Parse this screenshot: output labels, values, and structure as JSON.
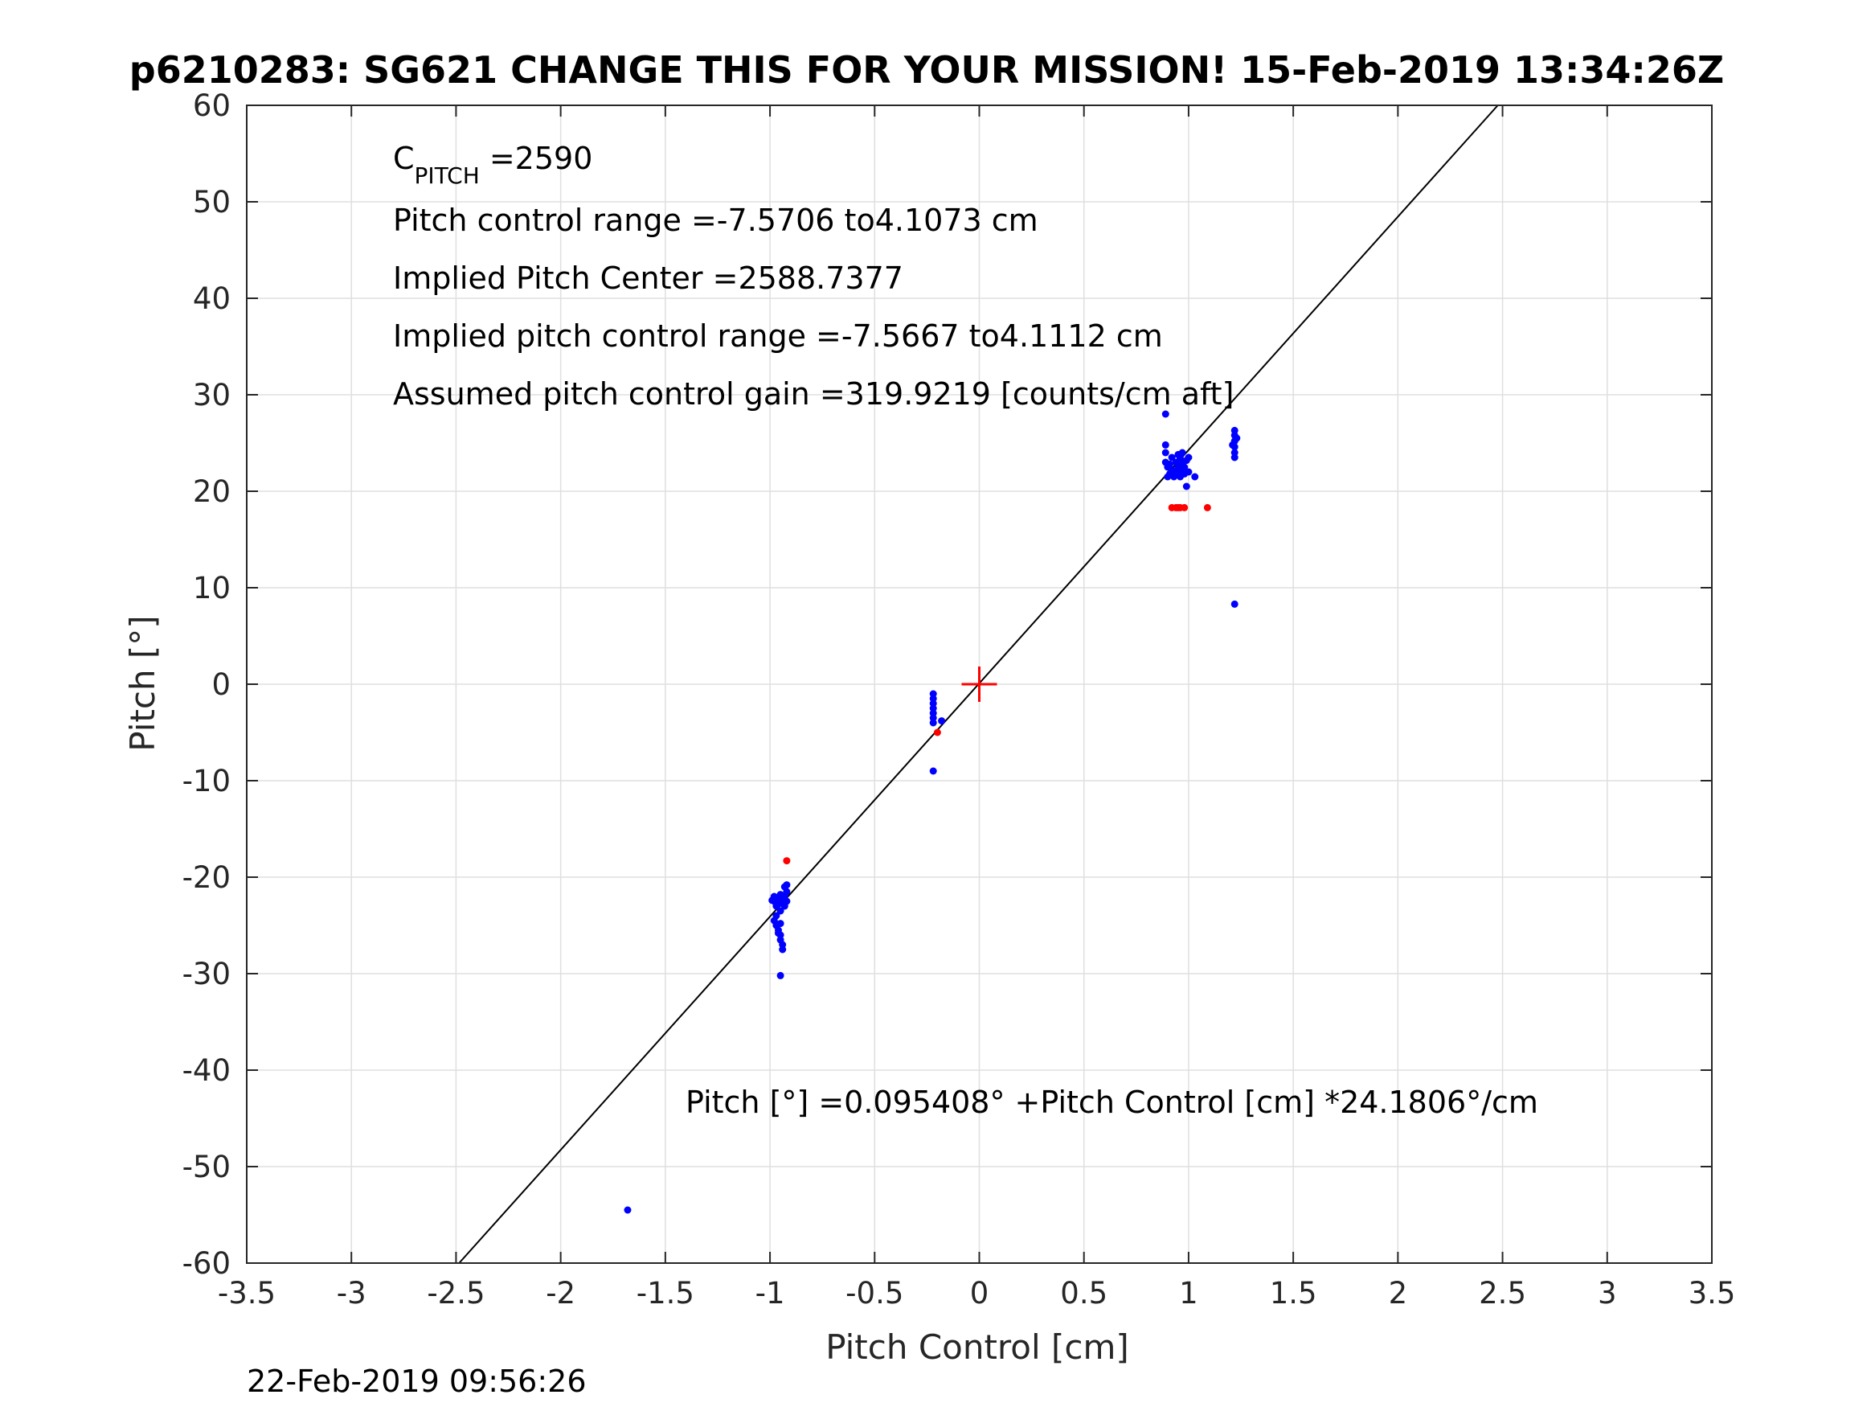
{
  "chart_data": {
    "type": "scatter",
    "title": "p6210283: SG621 CHANGE THIS FOR YOUR MISSION! 15-Feb-2019 13:34:26Z",
    "xlabel": "Pitch Control [cm]",
    "ylabel": "Pitch [°]",
    "xlim": [
      -3.5,
      3.5
    ],
    "ylim": [
      -60,
      60
    ],
    "xticks": [
      -3.5,
      -3,
      -2.5,
      -2,
      -1.5,
      -1,
      -0.5,
      0,
      0.5,
      1,
      1.5,
      2,
      2.5,
      3,
      3.5
    ],
    "xtick_labels": [
      "-3.5",
      "-3",
      "-2.5",
      "-2",
      "-1.5",
      "-1",
      "-0.5",
      "0",
      "0.5",
      "1",
      "1.5",
      "2",
      "2.5",
      "3",
      "3.5"
    ],
    "yticks": [
      -60,
      -50,
      -40,
      -30,
      -20,
      -10,
      0,
      10,
      20,
      30,
      40,
      50,
      60
    ],
    "ytick_labels": [
      "-60",
      "-50",
      "-40",
      "-30",
      "-20",
      "-10",
      "0",
      "10",
      "20",
      "30",
      "40",
      "50",
      "60"
    ],
    "grid": true,
    "annotations": {
      "c_pitch_base": "C",
      "c_pitch_sub": "PITCH",
      "c_pitch_value": " =2590",
      "pitch_range": "Pitch control range =-7.5706 to4.1073 cm",
      "implied_center": "Implied Pitch Center =2588.7377",
      "implied_range": "Implied pitch control range =-7.5667 to4.1112 cm",
      "gain": "Assumed pitch control gain =319.9219 [counts/cm aft]",
      "fit_equation": "Pitch [°] =0.095408° +Pitch Control [cm] *24.1806°/cm"
    },
    "fit_line": {
      "intercept": 0.095408,
      "slope": 24.1806,
      "color": "#000000"
    },
    "center_marker": {
      "x": 0,
      "y": 0,
      "color": "#ff0000",
      "shape": "plus"
    },
    "series": [
      {
        "color": "#0000ff",
        "points": [
          [
            -1.68,
            -54.5
          ],
          [
            -0.98,
            -22.0
          ],
          [
            -0.98,
            -22.5
          ],
          [
            -0.97,
            -23.0
          ],
          [
            -0.96,
            -22.2
          ],
          [
            -0.96,
            -22.8
          ],
          [
            -0.95,
            -23.5
          ],
          [
            -0.95,
            -21.8
          ],
          [
            -0.97,
            -24.0
          ],
          [
            -0.98,
            -24.5
          ],
          [
            -0.97,
            -25.0
          ],
          [
            -0.96,
            -25.5
          ],
          [
            -0.95,
            -26.0
          ],
          [
            -0.95,
            -26.5
          ],
          [
            -0.94,
            -27.0
          ],
          [
            -0.94,
            -27.5
          ],
          [
            -0.96,
            -25.8
          ],
          [
            -0.95,
            -24.8
          ],
          [
            -0.93,
            -21.0
          ],
          [
            -0.92,
            -21.5
          ],
          [
            -0.93,
            -22.0
          ],
          [
            -0.92,
            -22.5
          ],
          [
            -0.93,
            -23.0
          ],
          [
            -0.94,
            -22.4
          ],
          [
            -0.92,
            -20.8
          ],
          [
            -0.99,
            -22.4
          ],
          [
            -0.95,
            -30.2
          ],
          [
            -0.22,
            -1.0
          ],
          [
            -0.22,
            -1.5
          ],
          [
            -0.22,
            -2.0
          ],
          [
            -0.22,
            -2.5
          ],
          [
            -0.22,
            -3.0
          ],
          [
            -0.22,
            -3.5
          ],
          [
            -0.22,
            -4.0
          ],
          [
            -0.18,
            -3.8
          ],
          [
            -0.22,
            -9.0
          ],
          [
            0.89,
            28.0
          ],
          [
            0.89,
            24.8
          ],
          [
            0.89,
            24.0
          ],
          [
            0.89,
            23.0
          ],
          [
            0.9,
            22.5
          ],
          [
            0.9,
            21.5
          ],
          [
            0.91,
            22.8
          ],
          [
            0.92,
            23.5
          ],
          [
            0.93,
            22.0
          ],
          [
            0.93,
            21.5
          ],
          [
            0.94,
            23.0
          ],
          [
            0.95,
            22.5
          ],
          [
            0.95,
            23.8
          ],
          [
            0.96,
            22.0
          ],
          [
            0.96,
            21.5
          ],
          [
            0.97,
            23.0
          ],
          [
            0.97,
            24.0
          ],
          [
            0.98,
            22.5
          ],
          [
            0.98,
            21.8
          ],
          [
            0.99,
            23.2
          ],
          [
            0.99,
            20.5
          ],
          [
            1.0,
            22.0
          ],
          [
            1.0,
            23.5
          ],
          [
            1.03,
            21.5
          ],
          [
            0.92,
            22.2
          ],
          [
            0.94,
            21.8
          ],
          [
            0.96,
            23.4
          ],
          [
            0.91,
            21.8
          ],
          [
            1.22,
            26.3
          ],
          [
            1.22,
            25.8
          ],
          [
            1.22,
            25.2
          ],
          [
            1.22,
            24.6
          ],
          [
            1.22,
            24.0
          ],
          [
            1.22,
            23.5
          ],
          [
            1.23,
            25.5
          ],
          [
            1.21,
            24.8
          ],
          [
            1.22,
            8.3
          ]
        ]
      },
      {
        "color": "#ff0000",
        "points": [
          [
            -0.92,
            -18.3
          ],
          [
            -0.2,
            -5.0
          ],
          [
            0.92,
            18.3
          ],
          [
            0.94,
            18.3
          ],
          [
            0.95,
            18.3
          ],
          [
            0.96,
            18.3
          ],
          [
            0.98,
            18.3
          ],
          [
            1.09,
            18.3
          ]
        ]
      }
    ]
  },
  "footer": {
    "timestamp": "22-Feb-2019 09:56:26"
  }
}
